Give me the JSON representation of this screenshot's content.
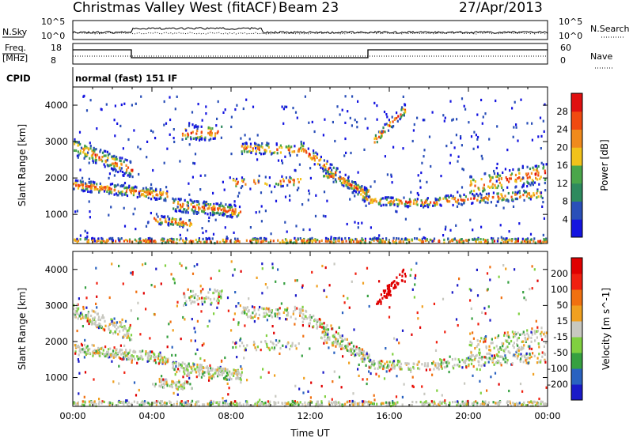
{
  "header": {
    "title": "Christmas Valley West (fitACF)",
    "beam": "Beam 23",
    "date": "27/Apr/2013"
  },
  "aux": {
    "nsky_label": "N.Sky",
    "nsky_ticks": [
      "10^5",
      "10^0"
    ],
    "nsearch_label": "N.Search",
    "nsearch_ticks": [
      "10^5",
      "10^0"
    ],
    "freq_label": [
      "Freq.",
      "[MHz]"
    ],
    "freq_ticks": [
      "18",
      "8"
    ],
    "nave_label": "Nave",
    "nave_ticks": [
      "60",
      "0"
    ],
    "cpid_label": "CPID",
    "cpid_text": "normal (fast) 151 IF"
  },
  "chart_data": [
    {
      "type": "heatmap",
      "name": "power",
      "ylabel": "Slant Range [km]",
      "xlabel": "",
      "ylim": [
        200,
        4500
      ],
      "yticks": [
        1000,
        2000,
        3000,
        4000
      ],
      "xlim": [
        0,
        24
      ],
      "colorbar": {
        "label": "Power [dB]",
        "ticks": [
          "4",
          "8",
          "12",
          "16",
          "20",
          "24",
          "28"
        ],
        "colors": [
          "#1414e0",
          "#2a4fb8",
          "#2e8a5e",
          "#4aa64a",
          "#f2c21a",
          "#f08a1c",
          "#f04a10",
          "#e01010"
        ]
      }
    },
    {
      "type": "heatmap",
      "name": "velocity",
      "ylabel": "Slant Range [km]",
      "xlabel": "Time UT",
      "ylim": [
        200,
        4500
      ],
      "yticks": [
        1000,
        2000,
        3000,
        4000
      ],
      "xlim": [
        0,
        24
      ],
      "xticks": [
        "00:00",
        "04:00",
        "08:00",
        "12:00",
        "16:00",
        "20:00",
        "00:00"
      ],
      "colorbar": {
        "label": "Velocity [m s^-1]",
        "ticks": [
          "200",
          "100",
          "50",
          "15",
          "-15",
          "-50",
          "-100",
          "-200"
        ],
        "colors": [
          "#1a1ac8",
          "#2a62c0",
          "#36a040",
          "#80d040",
          "#c8c8c0",
          "#f0a020",
          "#f07010",
          "#f02010",
          "#e00000"
        ]
      }
    }
  ]
}
